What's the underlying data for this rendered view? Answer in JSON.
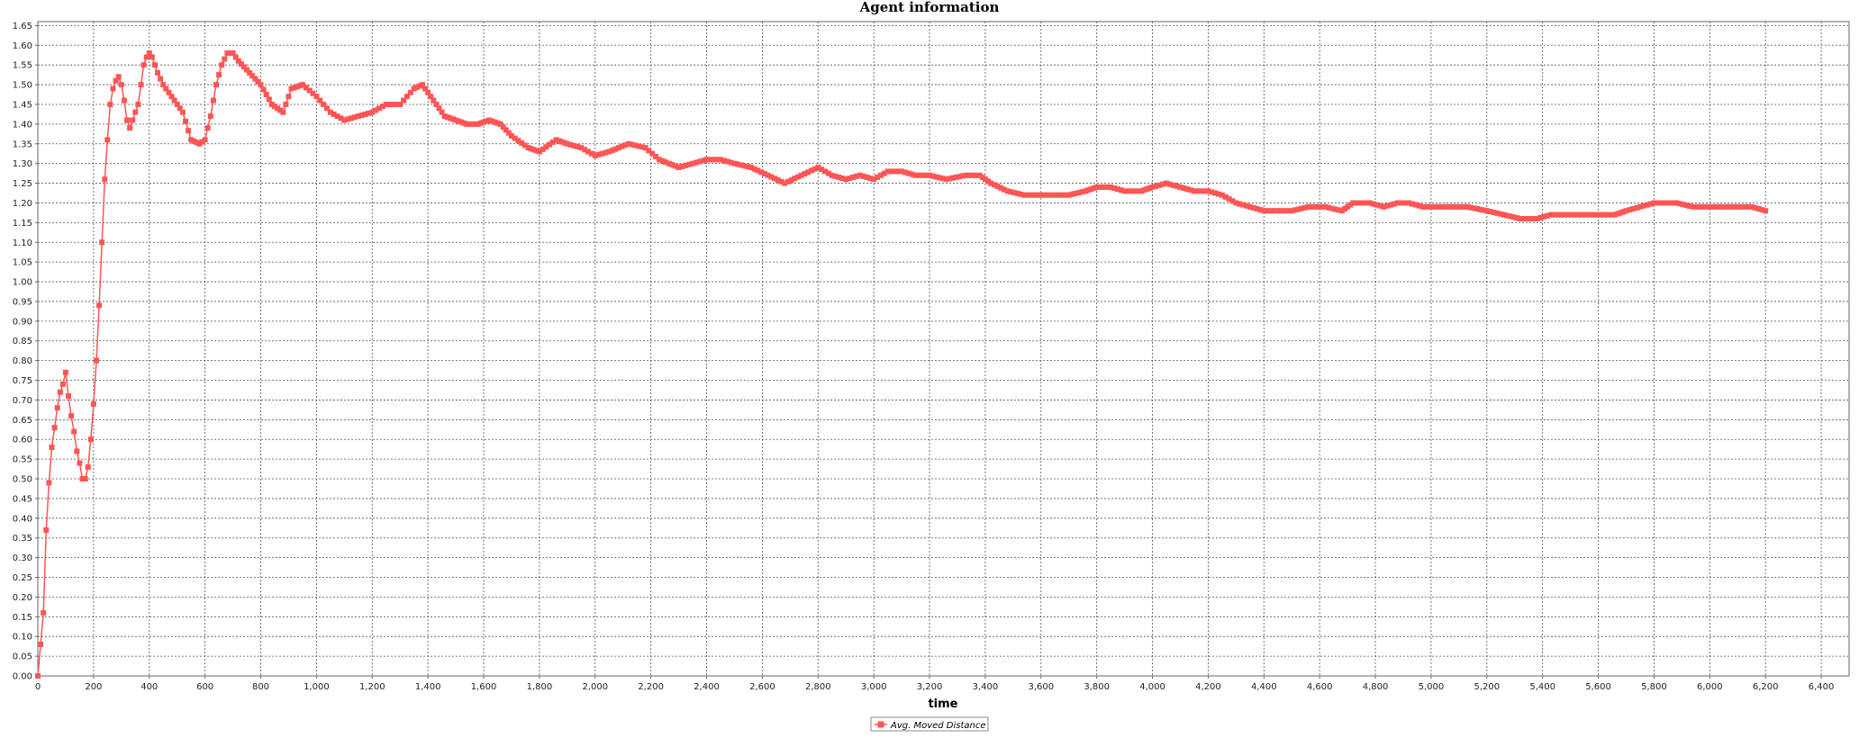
{
  "window": {
    "title": "Agent information"
  },
  "chart_data": {
    "type": "line",
    "title": "Agent information",
    "xlabel": "time",
    "ylabel": "",
    "xlim": [
      0,
      6500
    ],
    "ylim": [
      0,
      1.66
    ],
    "x_ticks": [
      0,
      200,
      400,
      600,
      800,
      1000,
      1200,
      1400,
      1600,
      1800,
      2000,
      2200,
      2400,
      2600,
      2800,
      3000,
      3200,
      3400,
      3600,
      3800,
      4000,
      4200,
      4400,
      4600,
      4800,
      5000,
      5200,
      5400,
      5600,
      5800,
      6000,
      6200,
      6400
    ],
    "x_tick_labels": [
      "0",
      "200",
      "400",
      "600",
      "800",
      "1,000",
      "1,200",
      "1,400",
      "1,600",
      "1,800",
      "2,000",
      "2,200",
      "2,400",
      "2,600",
      "2,800",
      "3,000",
      "3,200",
      "3,400",
      "3,600",
      "3,800",
      "4,000",
      "4,200",
      "4,400",
      "4,600",
      "4,800",
      "5,000",
      "5,200",
      "5,400",
      "5,600",
      "5,800",
      "6,000",
      "6,200",
      "6,400"
    ],
    "y_ticks": [
      0,
      0.05,
      0.1,
      0.15,
      0.2,
      0.25,
      0.3,
      0.35,
      0.4,
      0.45,
      0.5,
      0.55,
      0.6,
      0.65,
      0.7,
      0.75,
      0.8,
      0.85,
      0.9,
      0.95,
      1.0,
      1.05,
      1.1,
      1.15,
      1.2,
      1.25,
      1.3,
      1.35,
      1.4,
      1.45,
      1.5,
      1.55,
      1.6,
      1.65
    ],
    "y_tick_labels": [
      "0.00",
      "0.05",
      "0.10",
      "0.15",
      "0.20",
      "0.25",
      "0.30",
      "0.35",
      "0.40",
      "0.45",
      "0.50",
      "0.55",
      "0.60",
      "0.65",
      "0.70",
      "0.75",
      "0.80",
      "0.85",
      "0.90",
      "0.95",
      "1.00",
      "1.05",
      "1.10",
      "1.15",
      "1.20",
      "1.25",
      "1.30",
      "1.35",
      "1.40",
      "1.45",
      "1.50",
      "1.55",
      "1.60",
      "1.65"
    ],
    "grid": true,
    "legend_position": "bottom-center",
    "series": [
      {
        "name": "Avg. Moved Distance",
        "color": "#ff5555",
        "marker": "square",
        "x": [
          0,
          20,
          30,
          40,
          50,
          60,
          70,
          80,
          90,
          100,
          110,
          120,
          130,
          140,
          150,
          160,
          170,
          180,
          190,
          200,
          210,
          220,
          240,
          250,
          260,
          270,
          280,
          290,
          300,
          310,
          320,
          330,
          340,
          350,
          360,
          370,
          380,
          390,
          400,
          410,
          420,
          430,
          450,
          480,
          520,
          550,
          580,
          600,
          620,
          640,
          660,
          680,
          700,
          720,
          760,
          800,
          840,
          880,
          910,
          950,
          1000,
          1050,
          1100,
          1150,
          1200,
          1250,
          1300,
          1350,
          1380,
          1420,
          1460,
          1500,
          1540,
          1580,
          1620,
          1660,
          1700,
          1760,
          1800,
          1860,
          1900,
          1950,
          2000,
          2050,
          2120,
          2180,
          2230,
          2300,
          2350,
          2400,
          2450,
          2500,
          2560,
          2620,
          2680,
          2740,
          2800,
          2850,
          2900,
          2950,
          3000,
          3050,
          3100,
          3150,
          3200,
          3260,
          3330,
          3380,
          3420,
          3480,
          3540,
          3600,
          3650,
          3700,
          3760,
          3800,
          3850,
          3900,
          3960,
          4000,
          4050,
          4100,
          4150,
          4200,
          4250,
          4300,
          4350,
          4400,
          4450,
          4500,
          4560,
          4620,
          4680,
          4720,
          4780,
          4830,
          4880,
          4920,
          4970,
          5020,
          5070,
          5130,
          5200,
          5260,
          5320,
          5380,
          5430,
          5480,
          5540,
          5600,
          5660,
          5700,
          5750,
          5800,
          5840,
          5880,
          5940,
          6000,
          6060,
          6100,
          6150,
          6200
        ],
        "values": [
          0.0,
          0.16,
          0.37,
          0.49,
          0.58,
          0.63,
          0.68,
          0.72,
          0.74,
          0.77,
          0.71,
          0.66,
          0.62,
          0.57,
          0.54,
          0.5,
          0.5,
          0.53,
          0.6,
          0.69,
          0.8,
          0.94,
          1.26,
          1.36,
          1.45,
          1.49,
          1.51,
          1.52,
          1.5,
          1.46,
          1.41,
          1.39,
          1.41,
          1.43,
          1.45,
          1.5,
          1.55,
          1.57,
          1.58,
          1.57,
          1.55,
          1.53,
          1.5,
          1.47,
          1.43,
          1.36,
          1.35,
          1.36,
          1.42,
          1.5,
          1.55,
          1.58,
          1.58,
          1.56,
          1.53,
          1.5,
          1.45,
          1.43,
          1.49,
          1.5,
          1.47,
          1.43,
          1.41,
          1.42,
          1.43,
          1.45,
          1.45,
          1.49,
          1.5,
          1.46,
          1.42,
          1.41,
          1.4,
          1.4,
          1.41,
          1.4,
          1.37,
          1.34,
          1.33,
          1.36,
          1.35,
          1.34,
          1.32,
          1.33,
          1.35,
          1.34,
          1.31,
          1.29,
          1.3,
          1.31,
          1.31,
          1.3,
          1.29,
          1.27,
          1.25,
          1.27,
          1.29,
          1.27,
          1.26,
          1.27,
          1.26,
          1.28,
          1.28,
          1.27,
          1.27,
          1.26,
          1.27,
          1.27,
          1.25,
          1.23,
          1.22,
          1.22,
          1.22,
          1.22,
          1.23,
          1.24,
          1.24,
          1.23,
          1.23,
          1.24,
          1.25,
          1.24,
          1.23,
          1.23,
          1.22,
          1.2,
          1.19,
          1.18,
          1.18,
          1.18,
          1.19,
          1.19,
          1.18,
          1.2,
          1.2,
          1.19,
          1.2,
          1.2,
          1.19,
          1.19,
          1.19,
          1.19,
          1.18,
          1.17,
          1.16,
          1.16,
          1.17,
          1.17,
          1.17,
          1.17,
          1.17,
          1.18,
          1.19,
          1.2,
          1.2,
          1.2,
          1.19,
          1.19,
          1.19,
          1.19,
          1.19,
          1.18
        ]
      }
    ]
  }
}
